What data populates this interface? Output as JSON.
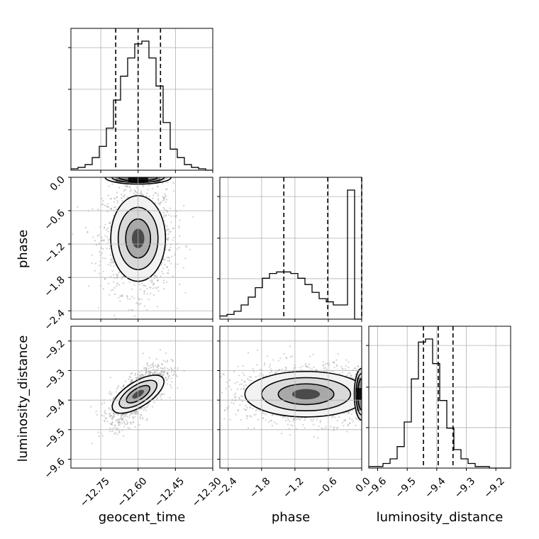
{
  "chart_data": [
    {
      "type": "corner",
      "parameters": [
        "geocent_time",
        "phase",
        "luminosity_distance"
      ],
      "axis_labels": {
        "x": [
          "geocent_time",
          "phase",
          "luminosity_distance"
        ],
        "y": [
          "",
          "phase",
          "luminosity_distance"
        ]
      },
      "ranges": {
        "geocent_time": [
          -12.87,
          -12.3
        ],
        "phase": [
          -2.55,
          0.0
        ],
        "luminosity_distance": [
          -9.63,
          -9.15
        ]
      },
      "ticks": {
        "geocent_time": [
          -12.75,
          -12.6,
          -12.45,
          -12.3
        ],
        "phase": [
          -2.4,
          -1.8,
          -1.2,
          -0.6,
          0.0
        ],
        "luminosity_distance": [
          -9.6,
          -9.5,
          -9.4,
          -9.3,
          -9.2
        ]
      },
      "tick_labels": {
        "geocent_time": [
          "−12.75",
          "−12.60",
          "−12.45",
          "−12.30"
        ],
        "phase": [
          "−2.4",
          "−1.8",
          "−1.2",
          "−0.6",
          "0.0"
        ],
        "luminosity_distance": [
          "−9.6",
          "−9.5",
          "−9.4",
          "−9.3",
          "−9.2"
        ]
      },
      "grid": true,
      "histograms": {
        "geocent_time": {
          "bin_edges_start": -12.87,
          "bin_width": 0.0285,
          "counts": [
            1,
            2,
            4,
            9,
            17,
            30,
            50,
            67,
            80,
            90,
            92,
            80,
            60,
            34,
            15,
            9,
            4,
            2,
            1,
            0
          ],
          "quantiles": [
            -12.69,
            -12.6,
            -12.51
          ]
        },
        "phase": {
          "bin_edges_start": -2.55,
          "bin_width": 0.1275,
          "counts": [
            2,
            3,
            5,
            9,
            14,
            20,
            26,
            29,
            30,
            30,
            29,
            26,
            22,
            17,
            13,
            11,
            9,
            9,
            82,
            0
          ],
          "quantiles": [
            -1.4,
            -0.61,
            0.0
          ]
        },
        "luminosity_distance": {
          "bin_edges_start": -9.63,
          "bin_width": 0.024,
          "counts": [
            1,
            1,
            3,
            6,
            14,
            30,
            58,
            82,
            84,
            68,
            44,
            26,
            12,
            6,
            3,
            1,
            1,
            0,
            0,
            0
          ],
          "quantiles": [
            -9.445,
            -9.395,
            -9.345
          ]
        }
      },
      "contours": {
        "geocent_time_phase": {
          "center": [
            -12.6,
            -1.1
          ],
          "spread": [
            0.05,
            0.35
          ],
          "peak_at_edge": 0.0
        },
        "geocent_time_luminosity_distance": {
          "center": [
            -12.6,
            -9.38
          ],
          "spread": [
            0.04,
            0.035
          ],
          "correlation": 0.7
        },
        "phase_luminosity_distance": {
          "center": [
            -1.0,
            -9.38
          ],
          "spread": [
            0.5,
            0.035
          ],
          "peak_at_edge": 0.0
        }
      }
    }
  ]
}
